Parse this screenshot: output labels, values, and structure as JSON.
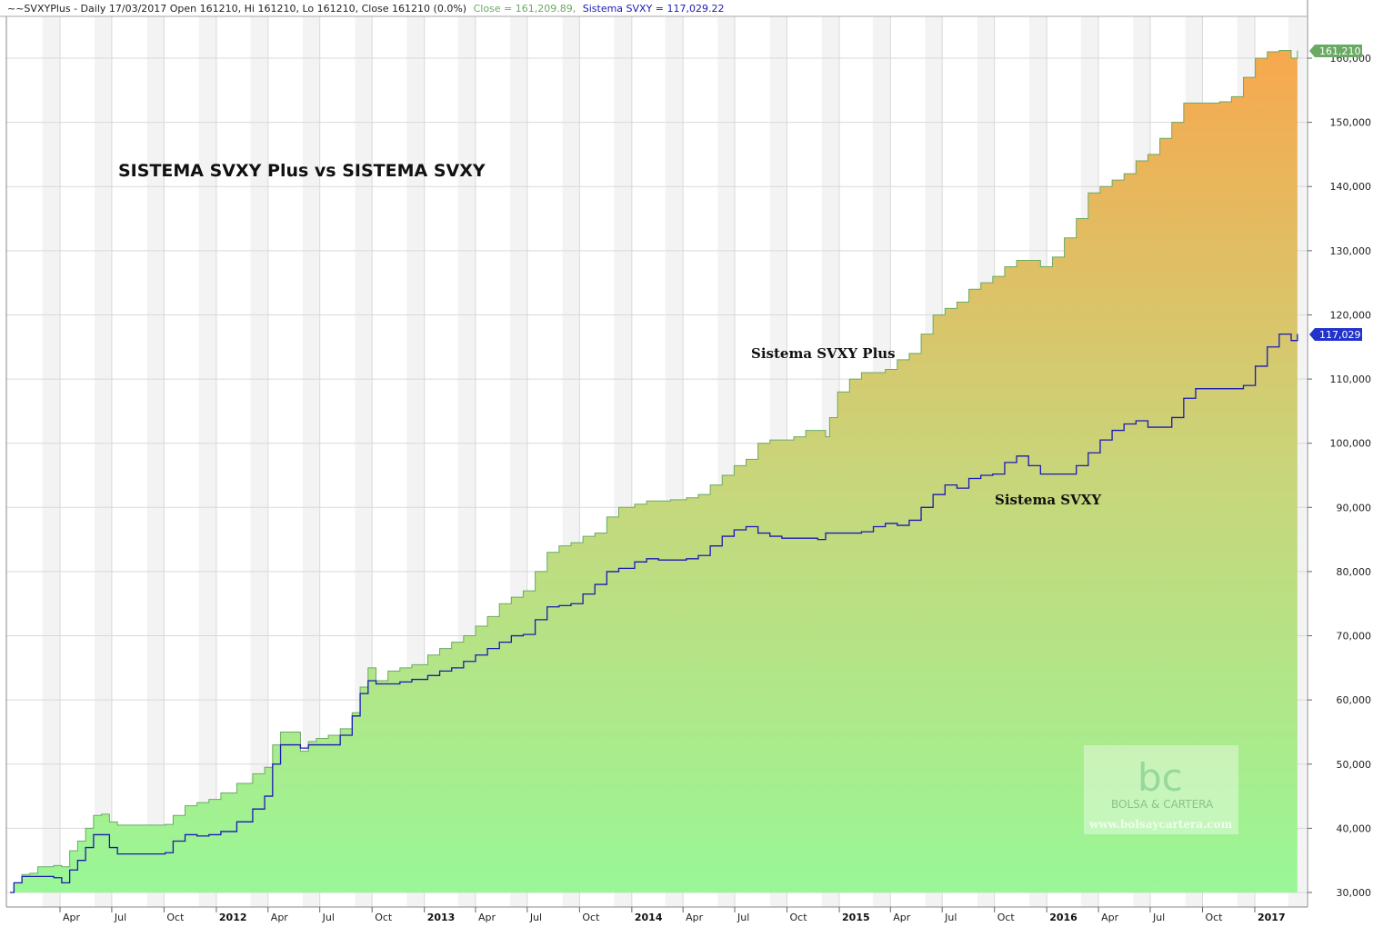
{
  "header": {
    "symbol": "~~SVXYPlus - Daily 17/03/2017 Open 161210, Hi 161210, Lo 161210, Close 161210 (0.0%)",
    "close_label": "Close = 161,209.89,",
    "sistema_label": "Sistema SVXY = 117,029.22"
  },
  "colors": {
    "close": "#6aaa64",
    "sistema": "#1a1ab4",
    "fill_top": "#f7a84e",
    "fill_bottom": "#99f796",
    "band": "#e9e9e9",
    "grid": "#d9d9d9",
    "last_close_badge": "#6aaa64",
    "last_sistema_badge": "#2233cc"
  },
  "watermark": {
    "brand": "BOLSA & CARTERA",
    "url": "www.bolsaycartera.com",
    "logo_letters": "bc"
  },
  "chart_data": {
    "type": "area",
    "title": "SISTEMA SVXY Plus vs SISTEMA SVXY",
    "annotations": [
      {
        "text": "Sistema SVXY Plus",
        "series": "Close"
      },
      {
        "text": "Sistema SVXY",
        "series": "Sistema SVXY"
      }
    ],
    "ylim": [
      30000,
      163000
    ],
    "y_ticks": [
      "30,000",
      "40,000",
      "50,000",
      "60,000",
      "70,000",
      "80,000",
      "90,000",
      "100,000",
      "110,000",
      "120,000",
      "130,000",
      "140,000",
      "150,000",
      "160,000"
    ],
    "x_ticks": [
      {
        "label": "Apr",
        "date": "2011-04",
        "year": false
      },
      {
        "label": "Jul",
        "date": "2011-07",
        "year": false
      },
      {
        "label": "Oct",
        "date": "2011-10",
        "year": false
      },
      {
        "label": "2012",
        "date": "2012-01",
        "year": true
      },
      {
        "label": "Apr",
        "date": "2012-04",
        "year": false
      },
      {
        "label": "Jul",
        "date": "2012-07",
        "year": false
      },
      {
        "label": "Oct",
        "date": "2012-10",
        "year": false
      },
      {
        "label": "2013",
        "date": "2013-01",
        "year": true
      },
      {
        "label": "Apr",
        "date": "2013-04",
        "year": false
      },
      {
        "label": "Jul",
        "date": "2013-07",
        "year": false
      },
      {
        "label": "Oct",
        "date": "2013-10",
        "year": false
      },
      {
        "label": "2014",
        "date": "2014-01",
        "year": true
      },
      {
        "label": "Apr",
        "date": "2014-04",
        "year": false
      },
      {
        "label": "Jul",
        "date": "2014-07",
        "year": false
      },
      {
        "label": "Oct",
        "date": "2014-10",
        "year": false
      },
      {
        "label": "2015",
        "date": "2015-01",
        "year": true
      },
      {
        "label": "Apr",
        "date": "2015-04",
        "year": false
      },
      {
        "label": "Jul",
        "date": "2015-07",
        "year": false
      },
      {
        "label": "Oct",
        "date": "2015-10",
        "year": false
      },
      {
        "label": "2016",
        "date": "2016-01",
        "year": true
      },
      {
        "label": "Apr",
        "date": "2016-04",
        "year": false
      },
      {
        "label": "Jul",
        "date": "2016-07",
        "year": false
      },
      {
        "label": "Oct",
        "date": "2016-10",
        "year": false
      },
      {
        "label": "2017",
        "date": "2017-01",
        "year": true
      }
    ],
    "last_values": {
      "close": "161,210",
      "sistema": "117,029"
    },
    "series": [
      {
        "name": "Close",
        "points": [
          [
            "2011-01-03",
            30000
          ],
          [
            "2011-01-10",
            31500
          ],
          [
            "2011-01-24",
            32800
          ],
          [
            "2011-02-07",
            33000
          ],
          [
            "2011-02-21",
            34000
          ],
          [
            "2011-03-07",
            34000
          ],
          [
            "2011-03-21",
            34200
          ],
          [
            "2011-04-04",
            34000
          ],
          [
            "2011-04-18",
            36500
          ],
          [
            "2011-05-02",
            38000
          ],
          [
            "2011-05-16",
            40000
          ],
          [
            "2011-05-30",
            42000
          ],
          [
            "2011-06-13",
            42200
          ],
          [
            "2011-06-27",
            41000
          ],
          [
            "2011-07-11",
            40500
          ],
          [
            "2011-08-01",
            40500
          ],
          [
            "2011-09-01",
            40500
          ],
          [
            "2011-10-03",
            40600
          ],
          [
            "2011-10-17",
            42000
          ],
          [
            "2011-11-07",
            43500
          ],
          [
            "2011-11-28",
            44000
          ],
          [
            "2011-12-19",
            44500
          ],
          [
            "2012-01-09",
            45500
          ],
          [
            "2012-02-06",
            47000
          ],
          [
            "2012-03-05",
            48500
          ],
          [
            "2012-03-26",
            49500
          ],
          [
            "2012-04-09",
            53000
          ],
          [
            "2012-04-23",
            55000
          ],
          [
            "2012-05-07",
            55000
          ],
          [
            "2012-05-28",
            52000
          ],
          [
            "2012-06-11",
            53500
          ],
          [
            "2012-06-25",
            54000
          ],
          [
            "2012-07-16",
            54500
          ],
          [
            "2012-08-06",
            55500
          ],
          [
            "2012-08-27",
            58000
          ],
          [
            "2012-09-10",
            62000
          ],
          [
            "2012-09-24",
            65000
          ],
          [
            "2012-10-08",
            63000
          ],
          [
            "2012-10-29",
            64500
          ],
          [
            "2012-11-19",
            65000
          ],
          [
            "2012-12-10",
            65500
          ],
          [
            "2013-01-07",
            67000
          ],
          [
            "2013-01-28",
            68000
          ],
          [
            "2013-02-18",
            69000
          ],
          [
            "2013-03-11",
            70000
          ],
          [
            "2013-04-01",
            71500
          ],
          [
            "2013-04-22",
            73000
          ],
          [
            "2013-05-13",
            75000
          ],
          [
            "2013-06-03",
            76000
          ],
          [
            "2013-06-24",
            77000
          ],
          [
            "2013-07-15",
            80000
          ],
          [
            "2013-08-05",
            83000
          ],
          [
            "2013-08-26",
            84000
          ],
          [
            "2013-09-16",
            84500
          ],
          [
            "2013-10-07",
            85500
          ],
          [
            "2013-10-28",
            86000
          ],
          [
            "2013-11-18",
            88500
          ],
          [
            "2013-12-09",
            90000
          ],
          [
            "2014-01-06",
            90500
          ],
          [
            "2014-01-27",
            91000
          ],
          [
            "2014-02-17",
            91000
          ],
          [
            "2014-03-10",
            91200
          ],
          [
            "2014-04-07",
            91500
          ],
          [
            "2014-04-28",
            92000
          ],
          [
            "2014-05-19",
            93500
          ],
          [
            "2014-06-09",
            95000
          ],
          [
            "2014-06-30",
            96500
          ],
          [
            "2014-07-21",
            97500
          ],
          [
            "2014-08-11",
            100000
          ],
          [
            "2014-09-01",
            100500
          ],
          [
            "2014-09-22",
            100500
          ],
          [
            "2014-10-13",
            101000
          ],
          [
            "2014-11-03",
            102000
          ],
          [
            "2014-11-24",
            102000
          ],
          [
            "2014-12-08",
            101000
          ],
          [
            "2014-12-15",
            104000
          ],
          [
            "2014-12-29",
            108000
          ],
          [
            "2015-01-19",
            110000
          ],
          [
            "2015-02-09",
            111000
          ],
          [
            "2015-03-02",
            111000
          ],
          [
            "2015-03-23",
            111500
          ],
          [
            "2015-04-13",
            113000
          ],
          [
            "2015-05-04",
            114000
          ],
          [
            "2015-05-25",
            117000
          ],
          [
            "2015-06-15",
            120000
          ],
          [
            "2015-07-06",
            121000
          ],
          [
            "2015-07-27",
            122000
          ],
          [
            "2015-08-17",
            124000
          ],
          [
            "2015-09-07",
            125000
          ],
          [
            "2015-09-28",
            126000
          ],
          [
            "2015-10-19",
            127500
          ],
          [
            "2015-11-09",
            128500
          ],
          [
            "2015-11-30",
            128500
          ],
          [
            "2015-12-21",
            127500
          ],
          [
            "2016-01-11",
            129000
          ],
          [
            "2016-02-01",
            132000
          ],
          [
            "2016-02-22",
            135000
          ],
          [
            "2016-03-14",
            139000
          ],
          [
            "2016-04-04",
            140000
          ],
          [
            "2016-04-25",
            141000
          ],
          [
            "2016-05-16",
            142000
          ],
          [
            "2016-06-06",
            144000
          ],
          [
            "2016-06-27",
            145000
          ],
          [
            "2016-07-18",
            147500
          ],
          [
            "2016-08-08",
            150000
          ],
          [
            "2016-08-29",
            153000
          ],
          [
            "2016-09-19",
            153000
          ],
          [
            "2016-10-10",
            153000
          ],
          [
            "2016-10-31",
            153200
          ],
          [
            "2016-11-21",
            154000
          ],
          [
            "2016-12-12",
            157000
          ],
          [
            "2017-01-02",
            160000
          ],
          [
            "2017-01-23",
            161000
          ],
          [
            "2017-02-13",
            161200
          ],
          [
            "2017-03-06",
            160000
          ],
          [
            "2017-03-17",
            161210
          ]
        ]
      },
      {
        "name": "Sistema SVXY",
        "points": [
          [
            "2011-01-03",
            30000
          ],
          [
            "2011-01-10",
            31500
          ],
          [
            "2011-01-24",
            32500
          ],
          [
            "2011-02-07",
            32500
          ],
          [
            "2011-02-21",
            32500
          ],
          [
            "2011-03-07",
            32500
          ],
          [
            "2011-03-21",
            32300
          ],
          [
            "2011-04-04",
            31500
          ],
          [
            "2011-04-18",
            33500
          ],
          [
            "2011-05-02",
            35000
          ],
          [
            "2011-05-16",
            37000
          ],
          [
            "2011-05-30",
            39000
          ],
          [
            "2011-06-13",
            39000
          ],
          [
            "2011-06-27",
            37000
          ],
          [
            "2011-07-11",
            36000
          ],
          [
            "2011-08-01",
            36000
          ],
          [
            "2011-09-01",
            36000
          ],
          [
            "2011-10-03",
            36200
          ],
          [
            "2011-10-17",
            38000
          ],
          [
            "2011-11-07",
            39000
          ],
          [
            "2011-11-28",
            38800
          ],
          [
            "2011-12-19",
            39000
          ],
          [
            "2012-01-09",
            39500
          ],
          [
            "2012-02-06",
            41000
          ],
          [
            "2012-03-05",
            43000
          ],
          [
            "2012-03-26",
            45000
          ],
          [
            "2012-04-09",
            50000
          ],
          [
            "2012-04-23",
            53000
          ],
          [
            "2012-05-07",
            53000
          ],
          [
            "2012-05-28",
            52500
          ],
          [
            "2012-06-11",
            53000
          ],
          [
            "2012-06-25",
            53000
          ],
          [
            "2012-07-16",
            53000
          ],
          [
            "2012-08-06",
            54500
          ],
          [
            "2012-08-27",
            57500
          ],
          [
            "2012-09-10",
            61000
          ],
          [
            "2012-09-24",
            63000
          ],
          [
            "2012-10-08",
            62500
          ],
          [
            "2012-10-29",
            62500
          ],
          [
            "2012-11-19",
            62800
          ],
          [
            "2012-12-10",
            63200
          ],
          [
            "2013-01-07",
            63800
          ],
          [
            "2013-01-28",
            64500
          ],
          [
            "2013-02-18",
            65000
          ],
          [
            "2013-03-11",
            66000
          ],
          [
            "2013-04-01",
            67000
          ],
          [
            "2013-04-22",
            68000
          ],
          [
            "2013-05-13",
            69000
          ],
          [
            "2013-06-03",
            70000
          ],
          [
            "2013-06-24",
            70200
          ],
          [
            "2013-07-15",
            72500
          ],
          [
            "2013-08-05",
            74500
          ],
          [
            "2013-08-26",
            74700
          ],
          [
            "2013-09-16",
            75000
          ],
          [
            "2013-10-07",
            76500
          ],
          [
            "2013-10-28",
            78000
          ],
          [
            "2013-11-18",
            80000
          ],
          [
            "2013-12-09",
            80500
          ],
          [
            "2014-01-06",
            81500
          ],
          [
            "2014-01-27",
            82000
          ],
          [
            "2014-02-17",
            81800
          ],
          [
            "2014-03-10",
            81800
          ],
          [
            "2014-04-07",
            82000
          ],
          [
            "2014-04-28",
            82500
          ],
          [
            "2014-05-19",
            84000
          ],
          [
            "2014-06-09",
            85500
          ],
          [
            "2014-06-30",
            86500
          ],
          [
            "2014-07-21",
            87000
          ],
          [
            "2014-08-11",
            86000
          ],
          [
            "2014-09-01",
            85500
          ],
          [
            "2014-09-22",
            85200
          ],
          [
            "2014-10-13",
            85200
          ],
          [
            "2014-11-03",
            85200
          ],
          [
            "2014-11-24",
            85000
          ],
          [
            "2014-12-08",
            86000
          ],
          [
            "2014-12-15",
            86000
          ],
          [
            "2014-12-29",
            86000
          ],
          [
            "2015-01-19",
            86000
          ],
          [
            "2015-02-09",
            86200
          ],
          [
            "2015-03-02",
            87000
          ],
          [
            "2015-03-23",
            87500
          ],
          [
            "2015-04-13",
            87200
          ],
          [
            "2015-05-04",
            88000
          ],
          [
            "2015-05-25",
            90000
          ],
          [
            "2015-06-15",
            92000
          ],
          [
            "2015-07-06",
            93500
          ],
          [
            "2015-07-27",
            93000
          ],
          [
            "2015-08-17",
            94500
          ],
          [
            "2015-09-07",
            95000
          ],
          [
            "2015-09-28",
            95200
          ],
          [
            "2015-10-19",
            97000
          ],
          [
            "2015-11-09",
            98000
          ],
          [
            "2015-11-30",
            96500
          ],
          [
            "2015-12-21",
            95200
          ],
          [
            "2016-01-11",
            95200
          ],
          [
            "2016-02-01",
            95200
          ],
          [
            "2016-02-22",
            96500
          ],
          [
            "2016-03-14",
            98500
          ],
          [
            "2016-04-04",
            100500
          ],
          [
            "2016-04-25",
            102000
          ],
          [
            "2016-05-16",
            103000
          ],
          [
            "2016-06-06",
            103500
          ],
          [
            "2016-06-27",
            102500
          ],
          [
            "2016-07-18",
            102500
          ],
          [
            "2016-08-08",
            104000
          ],
          [
            "2016-08-29",
            107000
          ],
          [
            "2016-09-19",
            108500
          ],
          [
            "2016-10-10",
            108500
          ],
          [
            "2016-10-31",
            108500
          ],
          [
            "2016-11-21",
            108500
          ],
          [
            "2016-12-12",
            109000
          ],
          [
            "2017-01-02",
            112000
          ],
          [
            "2017-01-23",
            115000
          ],
          [
            "2017-02-13",
            117000
          ],
          [
            "2017-03-06",
            116000
          ],
          [
            "2017-03-17",
            117029
          ]
        ]
      }
    ]
  }
}
